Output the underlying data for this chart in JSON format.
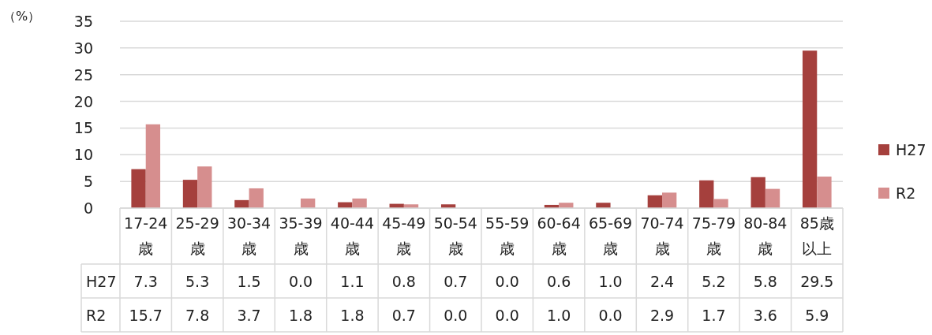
{
  "chart_data": {
    "type": "bar",
    "ylabel": "（%）",
    "categories": [
      "17-24歳",
      "25-29歳",
      "30-34歳",
      "35-39歳",
      "40-44歳",
      "45-49歳",
      "50-54歳",
      "55-59歳",
      "60-64歳",
      "65-69歳",
      "70-74歳",
      "75-79歳",
      "80-84歳",
      "85歳以上"
    ],
    "series": [
      {
        "name": "H27",
        "color": "#a5403d",
        "values": [
          7.3,
          5.3,
          1.5,
          0.0,
          1.1,
          0.8,
          0.7,
          0.0,
          0.6,
          1.0,
          2.4,
          5.2,
          5.8,
          29.5
        ],
        "value_labels": [
          "7.3",
          "5.3",
          "1.5",
          "0.0",
          "1.1",
          "0.8",
          "0.7",
          "0.0",
          "0.6",
          "1.0",
          "2.4",
          "5.2",
          "5.8",
          "29.5"
        ]
      },
      {
        "name": "R2",
        "color": "#d68e8e",
        "values": [
          15.7,
          7.8,
          3.7,
          1.8,
          1.8,
          0.7,
          0.0,
          0.0,
          1.0,
          0.0,
          2.9,
          1.7,
          3.6,
          5.9
        ],
        "value_labels": [
          "15.7",
          "7.8",
          "3.7",
          "1.8",
          "1.8",
          "0.7",
          "0.0",
          "0.0",
          "1.0",
          "0.0",
          "2.9",
          "1.7",
          "3.6",
          "5.9"
        ]
      }
    ],
    "ylim": [
      0,
      35
    ],
    "yticks": [
      0,
      5,
      10,
      15,
      20,
      25,
      30,
      35
    ],
    "grid": "y",
    "legend": "right"
  }
}
